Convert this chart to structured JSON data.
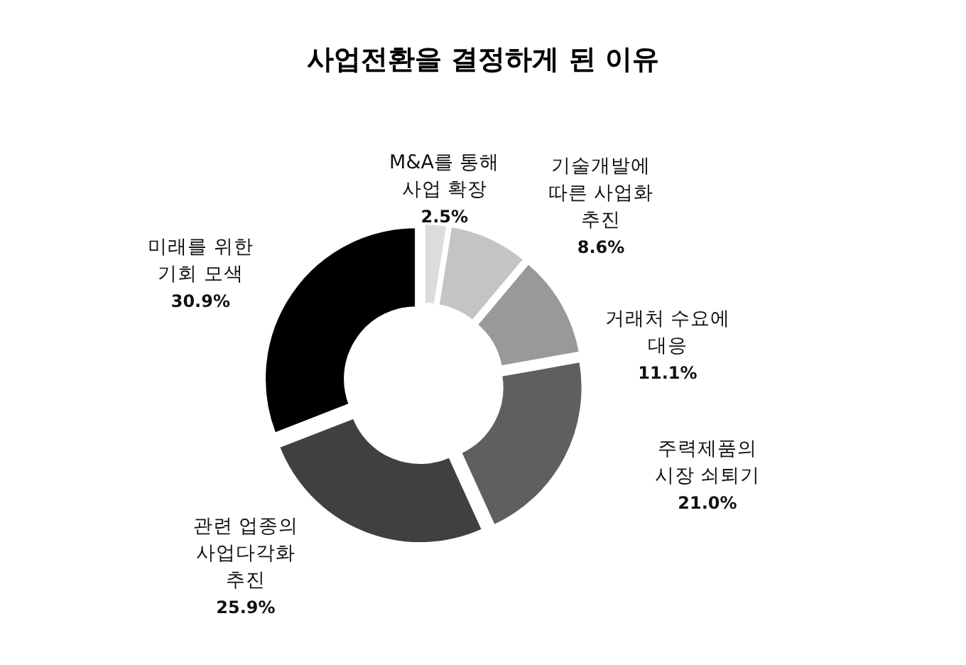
{
  "chart_data": {
    "type": "donut",
    "title": "사업전환을 결정하게 된 이유",
    "categories": [
      "M&A를 통해\n사업 확장",
      "기술개발에\n따른 사업화\n추진",
      "거래처 수요에\n대응",
      "주력제품의\n시장 쇠퇴기",
      "관련 업종의\n사업다각화\n추진",
      "미래를 위한\n기회 모색"
    ],
    "values": [
      2.5,
      8.6,
      11.1,
      21.0,
      25.9,
      30.9
    ],
    "colors": [
      "#dcdcdc",
      "#c4c4c4",
      "#999999",
      "#5f5f5f",
      "#404040",
      "#000000"
    ],
    "value_labels": [
      "2.5%",
      "8.6%",
      "11.1%",
      "21.0%",
      "25.9%",
      "30.9%"
    ]
  }
}
